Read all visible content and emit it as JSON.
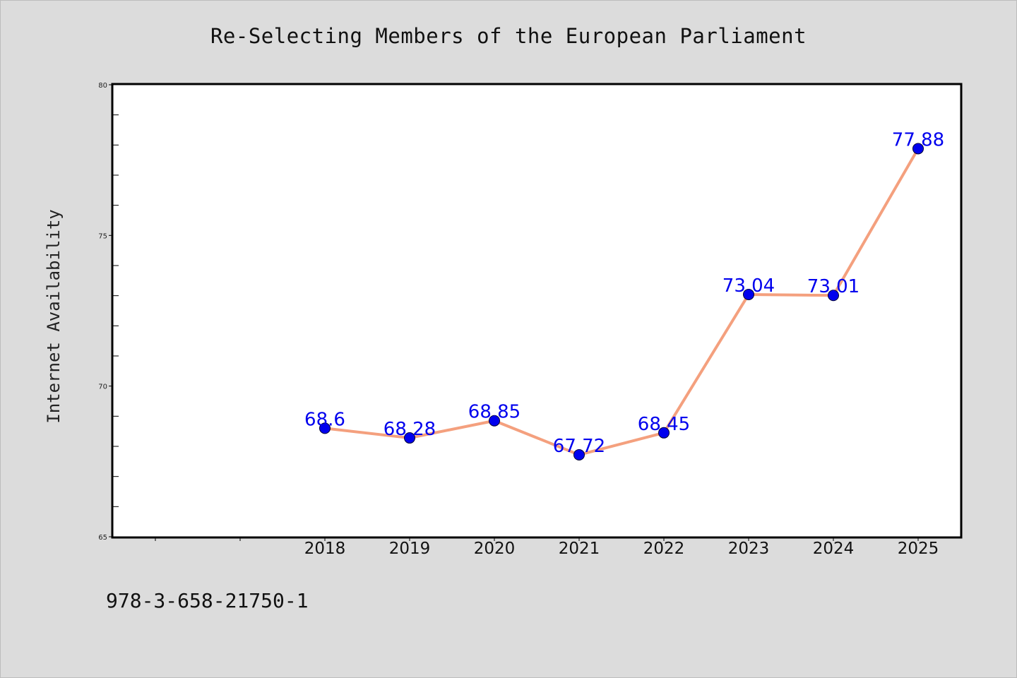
{
  "chart_data": {
    "type": "line",
    "title": "Re-Selecting Members of the European Parliament",
    "xlabel": "",
    "ylabel": "Internet Availability",
    "categories": [
      "2018",
      "2019",
      "2020",
      "2021",
      "2022",
      "2023",
      "2024",
      "2025"
    ],
    "values": [
      68.6,
      68.28,
      68.85,
      67.72,
      68.45,
      73.04,
      73.01,
      77.88
    ],
    "value_labels": [
      "68.6",
      "68.28",
      "68.85",
      "67.72",
      "68.45",
      "73.04",
      "73.01",
      "77.88"
    ],
    "ylim": [
      65,
      80
    ],
    "yticks": [
      65,
      70,
      75,
      80
    ],
    "grid": false,
    "line_color": "#f4a07e",
    "marker_color": "#0000ee",
    "label_color": "#0000ee"
  },
  "footer": {
    "code": "978-3-658-21750-1"
  }
}
